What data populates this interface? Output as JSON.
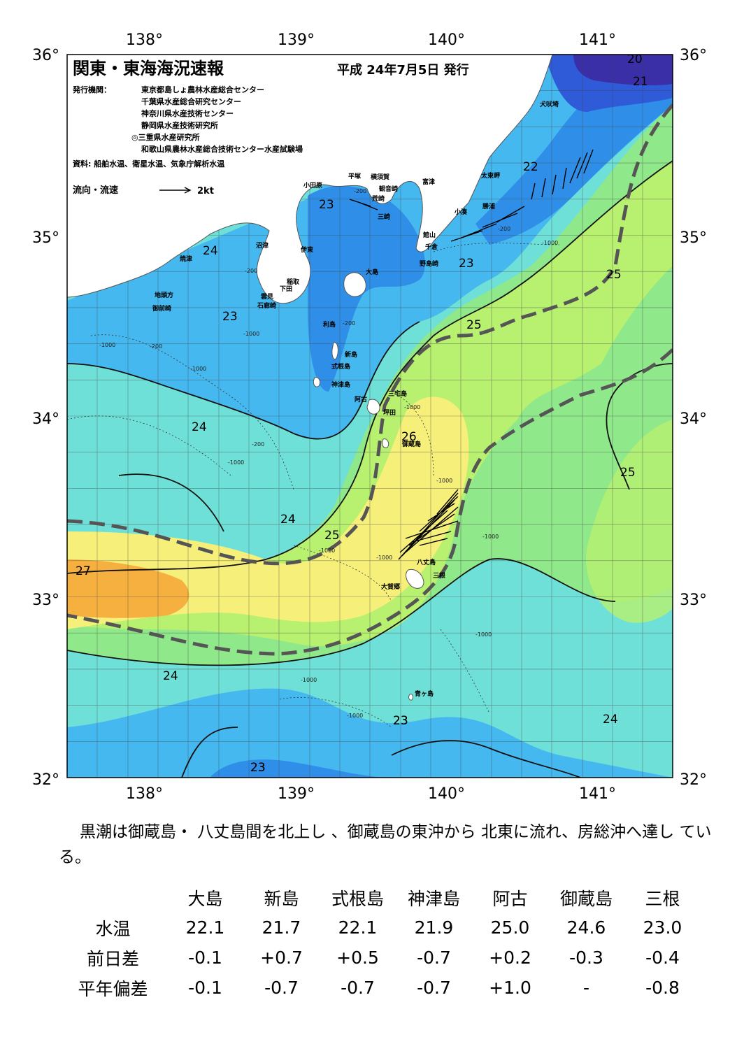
{
  "header": {
    "title": "関東・東海海況速報",
    "date": "平成 24年7月5日 発行",
    "issuer_label": "発行機関：",
    "issuers": [
      "東京都島しょ農林水産総合センター",
      "千葉県水産総合研究センター",
      "神奈川県水産技術センター",
      "静岡県水産技術研究所",
      "◎三重県水産研究所",
      "和歌山県農林水産総合技術センター水産試験場"
    ],
    "sources": "資料: 船舶水温、衛星水温、気象庁解析水温",
    "current_legend": "流向・流速",
    "current_scale": "2kt"
  },
  "axes": {
    "lon_labels": [
      "138°",
      "139°",
      "140°",
      "141°"
    ],
    "lat_labels": [
      "36°",
      "35°",
      "34°",
      "33°",
      "32°"
    ]
  },
  "colors": {
    "t20": "#3b2fa8",
    "t21": "#2f5ad8",
    "t22": "#2f8fe8",
    "t23": "#45b8f0",
    "t24": "#6fe0d8",
    "t25": "#8fe88a",
    "t26": "#b8f070",
    "t27": "#f6f07a",
    "t28": "#f6b040",
    "land": "#ffffff",
    "kuroshio_axis": "#555555"
  },
  "isotherm_labels": [
    "20",
    "21",
    "22",
    "23",
    "23",
    "23",
    "23",
    "24",
    "25",
    "25",
    "23",
    "24",
    "26",
    "24",
    "25",
    "25",
    "27",
    "24",
    "23",
    "24",
    "23"
  ],
  "depth_labels": [
    "-200",
    "-1000",
    "-200",
    "-1000",
    "-200",
    "-1000",
    "-200",
    "-1000",
    "-1000",
    "-200",
    "-1000",
    "-1000",
    "-1000",
    "-1000",
    "-1000",
    "-1000",
    "-1000",
    "-1000",
    "-200"
  ],
  "place_names": [
    "犬吠埼",
    "太東岬",
    "勝浦",
    "小湊",
    "富津",
    "館山",
    "千倉",
    "野島崎",
    "横須賀",
    "観音崎",
    "平塚",
    "荒崎",
    "三崎",
    "小田原",
    "沼津",
    "伊東",
    "焼津",
    "稲取",
    "下田",
    "雲見",
    "石廊崎",
    "地頭方",
    "御前崎",
    "大島",
    "利島",
    "新島",
    "式根島",
    "神津島",
    "三宅島",
    "阿古",
    "坪田",
    "御蔵島",
    "八丈島",
    "大賀郷",
    "三根",
    "青ヶ島"
  ],
  "summary": "黒潮は御蔵島・ 八丈島間を北上し 、御蔵島の東沖から 北東に流れ、房総沖へ達し ている。",
  "table": {
    "columns": [
      "大島",
      "新島",
      "式根島",
      "神津島",
      "阿古",
      "御蔵島",
      "三根"
    ],
    "rows": [
      {
        "label": "水温",
        "values": [
          "22.1",
          "21.7",
          "22.1",
          "21.9",
          "25.0",
          "24.6",
          "23.0"
        ]
      },
      {
        "label": "前日差",
        "values": [
          "-0.1",
          "+0.7",
          "+0.5",
          "-0.7",
          "+0.2",
          "-0.3",
          "-0.4"
        ]
      },
      {
        "label": "平年偏差",
        "values": [
          "-0.1",
          "-0.7",
          "-0.7",
          "-0.7",
          "+1.0",
          "-",
          "-0.8"
        ]
      }
    ]
  }
}
